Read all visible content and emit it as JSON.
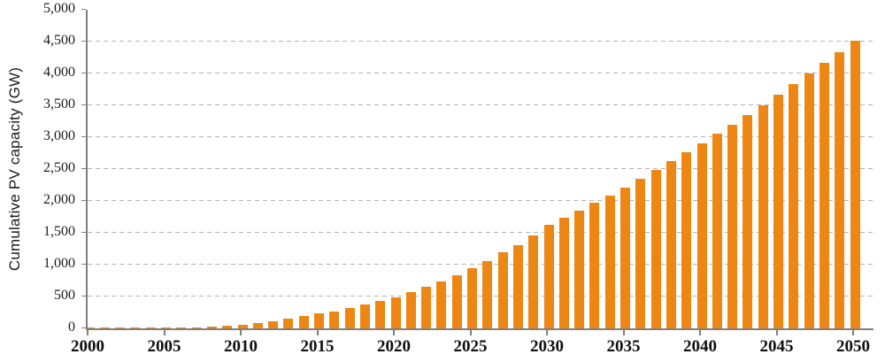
{
  "chart": {
    "y_tick_labels": [
      "0",
      "500",
      "1,000",
      "1,500",
      "2,000",
      "2,500",
      "3,000",
      "3,500",
      "4,000",
      "4,500",
      "5,000"
    ],
    "x_tick_labels": [
      "2000",
      "2005",
      "2010",
      "2015",
      "2020",
      "2025",
      "2030",
      "2035",
      "2040",
      "2045",
      "2050"
    ]
  },
  "chart_data": {
    "type": "bar",
    "title": "",
    "xlabel": "",
    "ylabel": "Cumulative PV capacity (GW)",
    "ylim": [
      0,
      5000
    ],
    "y_tick_step": 500,
    "x_tick_step_years": 5,
    "grid": "horizontal-dashed",
    "legend": "none",
    "categories": [
      2000,
      2001,
      2002,
      2003,
      2004,
      2005,
      2006,
      2007,
      2008,
      2009,
      2010,
      2011,
      2012,
      2013,
      2014,
      2015,
      2016,
      2017,
      2018,
      2019,
      2020,
      2021,
      2022,
      2023,
      2024,
      2025,
      2026,
      2027,
      2028,
      2029,
      2030,
      2031,
      2032,
      2033,
      2034,
      2035,
      2036,
      2037,
      2038,
      2039,
      2040,
      2041,
      2042,
      2043,
      2044,
      2045,
      2046,
      2047,
      2048,
      2049,
      2050
    ],
    "values": [
      1,
      2,
      3,
      4,
      5,
      8,
      12,
      16,
      25,
      35,
      55,
      85,
      115,
      155,
      190,
      230,
      270,
      320,
      370,
      430,
      480,
      570,
      650,
      740,
      840,
      940,
      1060,
      1190,
      1310,
      1460,
      1630,
      1730,
      1850,
      1970,
      2090,
      2210,
      2350,
      2490,
      2630,
      2760,
      2900,
      3050,
      3200,
      3350,
      3500,
      3660,
      3830,
      4000,
      4170,
      4340,
      4520
    ]
  },
  "colors": {
    "bar": "#EE8614",
    "axis": "#7F7F7F",
    "grid": "#B3B3B3",
    "text": "#1A1A1A"
  }
}
